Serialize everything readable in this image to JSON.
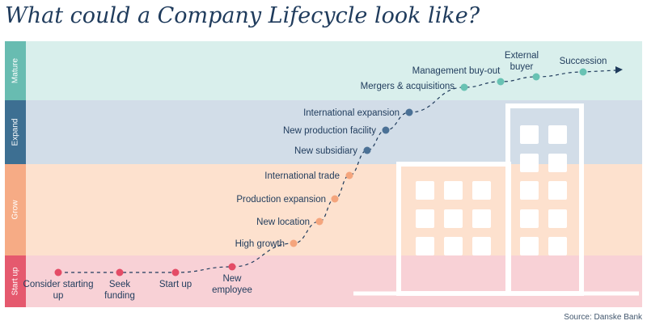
{
  "title": "What could a Company Lifecycle look like?",
  "source": "Source: Danske Bank",
  "colors": {
    "title": "#1f3b5c",
    "path": "#1f3b5c",
    "building": "#ffffff"
  },
  "stages": [
    {
      "key": "mature",
      "label": "Mature",
      "band_color": "#d9efec",
      "tab_color": "#68bcb1",
      "dot_color": "#68c2b3"
    },
    {
      "key": "expand",
      "label": "Expand",
      "band_color": "#d2dde8",
      "tab_color": "#3d6f92",
      "dot_color": "#4b7196"
    },
    {
      "key": "grow",
      "label": "Grow",
      "band_color": "#fde1ce",
      "tab_color": "#f6ab85",
      "dot_color": "#f4a57d"
    },
    {
      "key": "startup",
      "label": "Start up",
      "band_color": "#f8d1d6",
      "tab_color": "#e5596e",
      "dot_color": "#e44c66"
    }
  ],
  "milestones": [
    {
      "stage": "startup",
      "label": "Consider starting up"
    },
    {
      "stage": "startup",
      "label": "Seek funding"
    },
    {
      "stage": "startup",
      "label": "Start up"
    },
    {
      "stage": "startup",
      "label": "New employee"
    },
    {
      "stage": "grow",
      "label": "High growth"
    },
    {
      "stage": "grow",
      "label": "New location"
    },
    {
      "stage": "grow",
      "label": "Production expansion"
    },
    {
      "stage": "grow",
      "label": "International trade"
    },
    {
      "stage": "expand",
      "label": "New subsidiary"
    },
    {
      "stage": "expand",
      "label": "New production facility"
    },
    {
      "stage": "expand",
      "label": "International expansion"
    },
    {
      "stage": "mature",
      "label": "Mergers & acquisitions"
    },
    {
      "stage": "mature",
      "label": "Management buy-out"
    },
    {
      "stage": "mature",
      "label": "External buyer"
    },
    {
      "stage": "mature",
      "label": "Succession"
    }
  ]
}
